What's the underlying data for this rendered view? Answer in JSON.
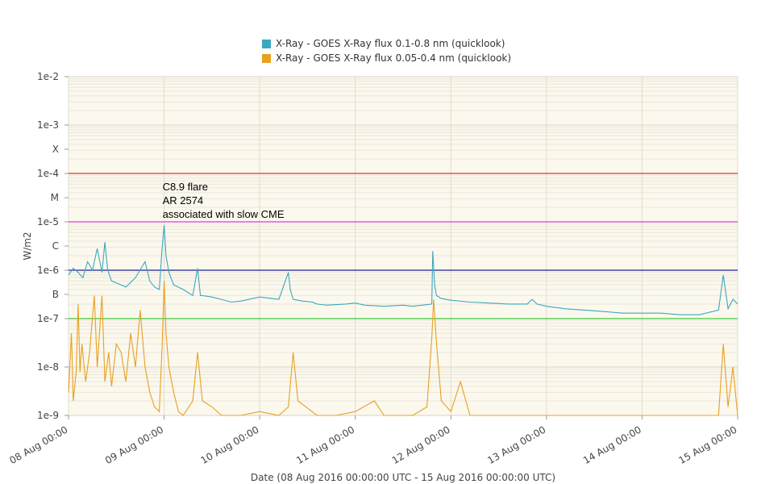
{
  "chart_data": {
    "type": "line",
    "xlabel": "Date (08 Aug 2016 00:00:00 UTC - 15 Aug 2016 00:00:00 UTC)",
    "ylabel": "W/m2",
    "y_scale": "log",
    "ylim": [
      1e-09,
      0.01
    ],
    "x_range": [
      "08 Aug 00:00",
      "15 Aug 00:00"
    ],
    "grid": true,
    "legend_position": "top-center",
    "y_ticks": [
      {
        "label": "1e-2",
        "value": 0.01
      },
      {
        "label": "1e-3",
        "value": 0.001
      },
      {
        "label": "X",
        "value": 0.000316
      },
      {
        "label": "1e-4",
        "value": 0.0001
      },
      {
        "label": "M",
        "value": 3.16e-05
      },
      {
        "label": "1e-5",
        "value": 1e-05
      },
      {
        "label": "C",
        "value": 3.16e-06
      },
      {
        "label": "1e-6",
        "value": 1e-06
      },
      {
        "label": "B",
        "value": 3.16e-07
      },
      {
        "label": "1e-7",
        "value": 1e-07
      },
      {
        "label": "1e-8",
        "value": 1e-08
      },
      {
        "label": "1e-9",
        "value": 1e-09
      }
    ],
    "x_ticks": [
      "08 Aug 00:00",
      "09 Aug 00:00",
      "10 Aug 00:00",
      "11 Aug 00:00",
      "12 Aug 00:00",
      "13 Aug 00:00",
      "14 Aug 00:00",
      "15 Aug 00:00"
    ],
    "threshold_lines": [
      {
        "value": 0.0001,
        "color": "#e03030"
      },
      {
        "value": 1e-05,
        "color": "#d63ad6"
      },
      {
        "value": 1e-06,
        "color": "#1f1f8f"
      },
      {
        "value": 1e-07,
        "color": "#3cc83c"
      }
    ],
    "annotation": {
      "lines": [
        "C8.9 flare",
        "AR 2574",
        "associated with slow CME"
      ],
      "at_day": 1.0
    },
    "series": [
      {
        "name": "X-Ray - GOES X-Ray flux 0.1-0.8 nm (quicklook)",
        "color": "#3ba8c0",
        "x_days": [
          0,
          0.05,
          0.1,
          0.15,
          0.2,
          0.25,
          0.3,
          0.35,
          0.38,
          0.41,
          0.45,
          0.5,
          0.6,
          0.7,
          0.8,
          0.85,
          0.9,
          0.95,
          0.98,
          1.0,
          1.02,
          1.05,
          1.1,
          1.2,
          1.3,
          1.35,
          1.38,
          1.4,
          1.5,
          1.6,
          1.7,
          1.8,
          2.0,
          2.2,
          2.3,
          2.32,
          2.35,
          2.45,
          2.55,
          2.6,
          2.7,
          2.9,
          3.0,
          3.1,
          3.3,
          3.5,
          3.6,
          3.8,
          3.81,
          3.83,
          3.85,
          3.9,
          4.0,
          4.2,
          4.4,
          4.6,
          4.8,
          4.85,
          4.9,
          5.0,
          5.2,
          5.4,
          5.6,
          5.8,
          6.0,
          6.2,
          6.4,
          6.6,
          6.8,
          6.85,
          6.9,
          6.95,
          7.0
        ],
        "y": [
          8e-07,
          1.1e-06,
          9e-07,
          7e-07,
          1.5e-06,
          1e-06,
          2.8e-06,
          9e-07,
          3.8e-06,
          1e-06,
          6e-07,
          5.5e-07,
          4.5e-07,
          7e-07,
          1.5e-06,
          6e-07,
          4.5e-07,
          4e-07,
          3e-06,
          8.5e-06,
          2e-06,
          9e-07,
          5e-07,
          4e-07,
          3e-07,
          1.1e-06,
          3e-07,
          3e-07,
          2.8e-07,
          2.5e-07,
          2.2e-07,
          2.3e-07,
          2.8e-07,
          2.5e-07,
          9e-07,
          4e-07,
          2.5e-07,
          2.3e-07,
          2.2e-07,
          2e-07,
          1.9e-07,
          2e-07,
          2.1e-07,
          1.9e-07,
          1.8e-07,
          1.9e-07,
          1.8e-07,
          2e-07,
          2.5e-06,
          5e-07,
          3e-07,
          2.6e-07,
          2.4e-07,
          2.2e-07,
          2.1e-07,
          2e-07,
          2e-07,
          2.5e-07,
          2e-07,
          1.8e-07,
          1.6e-07,
          1.5e-07,
          1.4e-07,
          1.3e-07,
          1.3e-07,
          1.3e-07,
          1.2e-07,
          1.2e-07,
          1.5e-07,
          8e-07,
          1.6e-07,
          2.5e-07,
          2e-07
        ]
      },
      {
        "name": "X-Ray - GOES X-Ray flux 0.05-0.4 nm (quicklook)",
        "color": "#e8a020",
        "x_days": [
          0,
          0.03,
          0.05,
          0.08,
          0.1,
          0.12,
          0.14,
          0.18,
          0.22,
          0.27,
          0.3,
          0.35,
          0.38,
          0.42,
          0.45,
          0.5,
          0.55,
          0.6,
          0.65,
          0.7,
          0.75,
          0.8,
          0.85,
          0.9,
          0.95,
          0.98,
          1.0,
          1.02,
          1.05,
          1.1,
          1.15,
          1.2,
          1.3,
          1.35,
          1.4,
          1.5,
          1.6,
          1.7,
          1.8,
          2.0,
          2.2,
          2.3,
          2.35,
          2.4,
          2.6,
          2.8,
          3.0,
          3.2,
          3.3,
          3.4,
          3.6,
          3.75,
          3.8,
          3.82,
          3.85,
          3.9,
          4.0,
          4.1,
          4.2,
          4.4,
          4.6,
          4.8,
          5.0,
          5.2,
          5.4,
          5.6,
          5.8,
          6.0,
          6.2,
          6.4,
          6.6,
          6.8,
          6.85,
          6.9,
          6.95,
          7.0
        ],
        "y": [
          3e-09,
          5e-08,
          2e-09,
          8e-09,
          2e-07,
          8e-09,
          3e-08,
          5e-09,
          2e-08,
          3e-07,
          1e-08,
          3e-07,
          5e-09,
          2e-08,
          4e-09,
          3e-08,
          2e-08,
          5e-09,
          5e-08,
          1e-08,
          1.5e-07,
          1e-08,
          3e-09,
          1.5e-09,
          1.2e-09,
          3e-08,
          6e-07,
          5e-08,
          1e-08,
          3e-09,
          1.2e-09,
          1e-09,
          2e-09,
          2e-08,
          2e-09,
          1.5e-09,
          1e-09,
          1e-09,
          1e-09,
          1.2e-09,
          1e-09,
          1.5e-09,
          2e-08,
          2e-09,
          1e-09,
          1e-09,
          1.2e-09,
          2e-09,
          1e-09,
          1e-09,
          1e-09,
          1.5e-09,
          4e-08,
          2.5e-07,
          3e-08,
          2e-09,
          1.2e-09,
          5e-09,
          1e-09,
          1e-09,
          1e-09,
          1e-09,
          1e-09,
          1e-09,
          1e-09,
          1e-09,
          1e-09,
          1e-09,
          1e-09,
          1e-09,
          1e-09,
          1e-09,
          3e-08,
          1.5e-09,
          1e-08,
          1e-09
        ]
      }
    ]
  }
}
